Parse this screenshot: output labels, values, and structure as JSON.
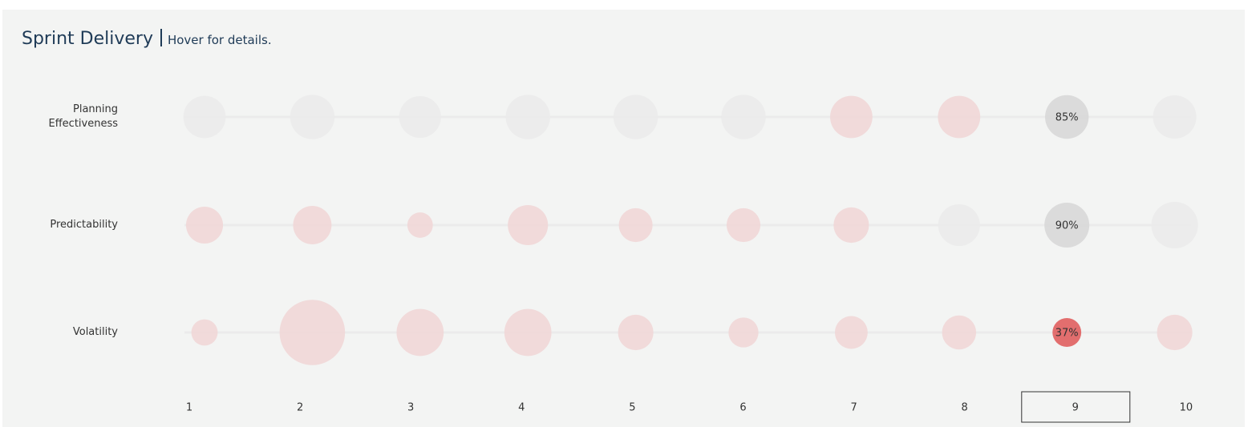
{
  "chart_data": {
    "type": "bubble",
    "title": "Sprint Delivery",
    "subtitle": "Hover for details.",
    "categories": [
      "1",
      "2",
      "3",
      "4",
      "5",
      "6",
      "7",
      "8",
      "9",
      "10"
    ],
    "selected_category": "9",
    "series": [
      {
        "name": "Planning Effectiveness",
        "values": [
          80,
          88,
          78,
          88,
          88,
          88,
          80,
          80,
          85,
          84
        ],
        "value_labels": [
          null,
          null,
          null,
          null,
          null,
          null,
          null,
          null,
          "85%",
          null
        ],
        "colors": [
          "#ebebeb",
          "#ebebeb",
          "#ebebeb",
          "#ebebeb",
          "#ebebeb",
          "#ebebeb",
          "#f0d8d8",
          "#f0d8d8",
          "#d9d9d9",
          "#ebebeb"
        ]
      },
      {
        "name": "Predictability",
        "values": [
          61,
          66,
          29,
          72,
          51,
          51,
          56,
          78,
          90,
          97
        ],
        "value_labels": [
          null,
          null,
          null,
          null,
          null,
          null,
          null,
          null,
          "90%",
          null
        ],
        "colors": [
          "#f0d8d8",
          "#f0d8d8",
          "#f0d8d8",
          "#f0d8d8",
          "#f0d8d8",
          "#f0d8d8",
          "#f0d8d8",
          "#ebebeb",
          "#d9d9d9",
          "#ebebeb"
        ]
      },
      {
        "name": "Volatility",
        "values": [
          31,
          191,
          99,
          99,
          56,
          40,
          48,
          52,
          37,
          56
        ],
        "value_labels": [
          null,
          null,
          null,
          null,
          null,
          null,
          null,
          null,
          "37%",
          null
        ],
        "colors": [
          "#f0d8d8",
          "#f0d8d8",
          "#f0d8d8",
          "#f0d8d8",
          "#f0d8d8",
          "#f0d8d8",
          "#f0d8d8",
          "#f0d8d8",
          "#e06666",
          "#f0d8d8"
        ]
      }
    ]
  }
}
